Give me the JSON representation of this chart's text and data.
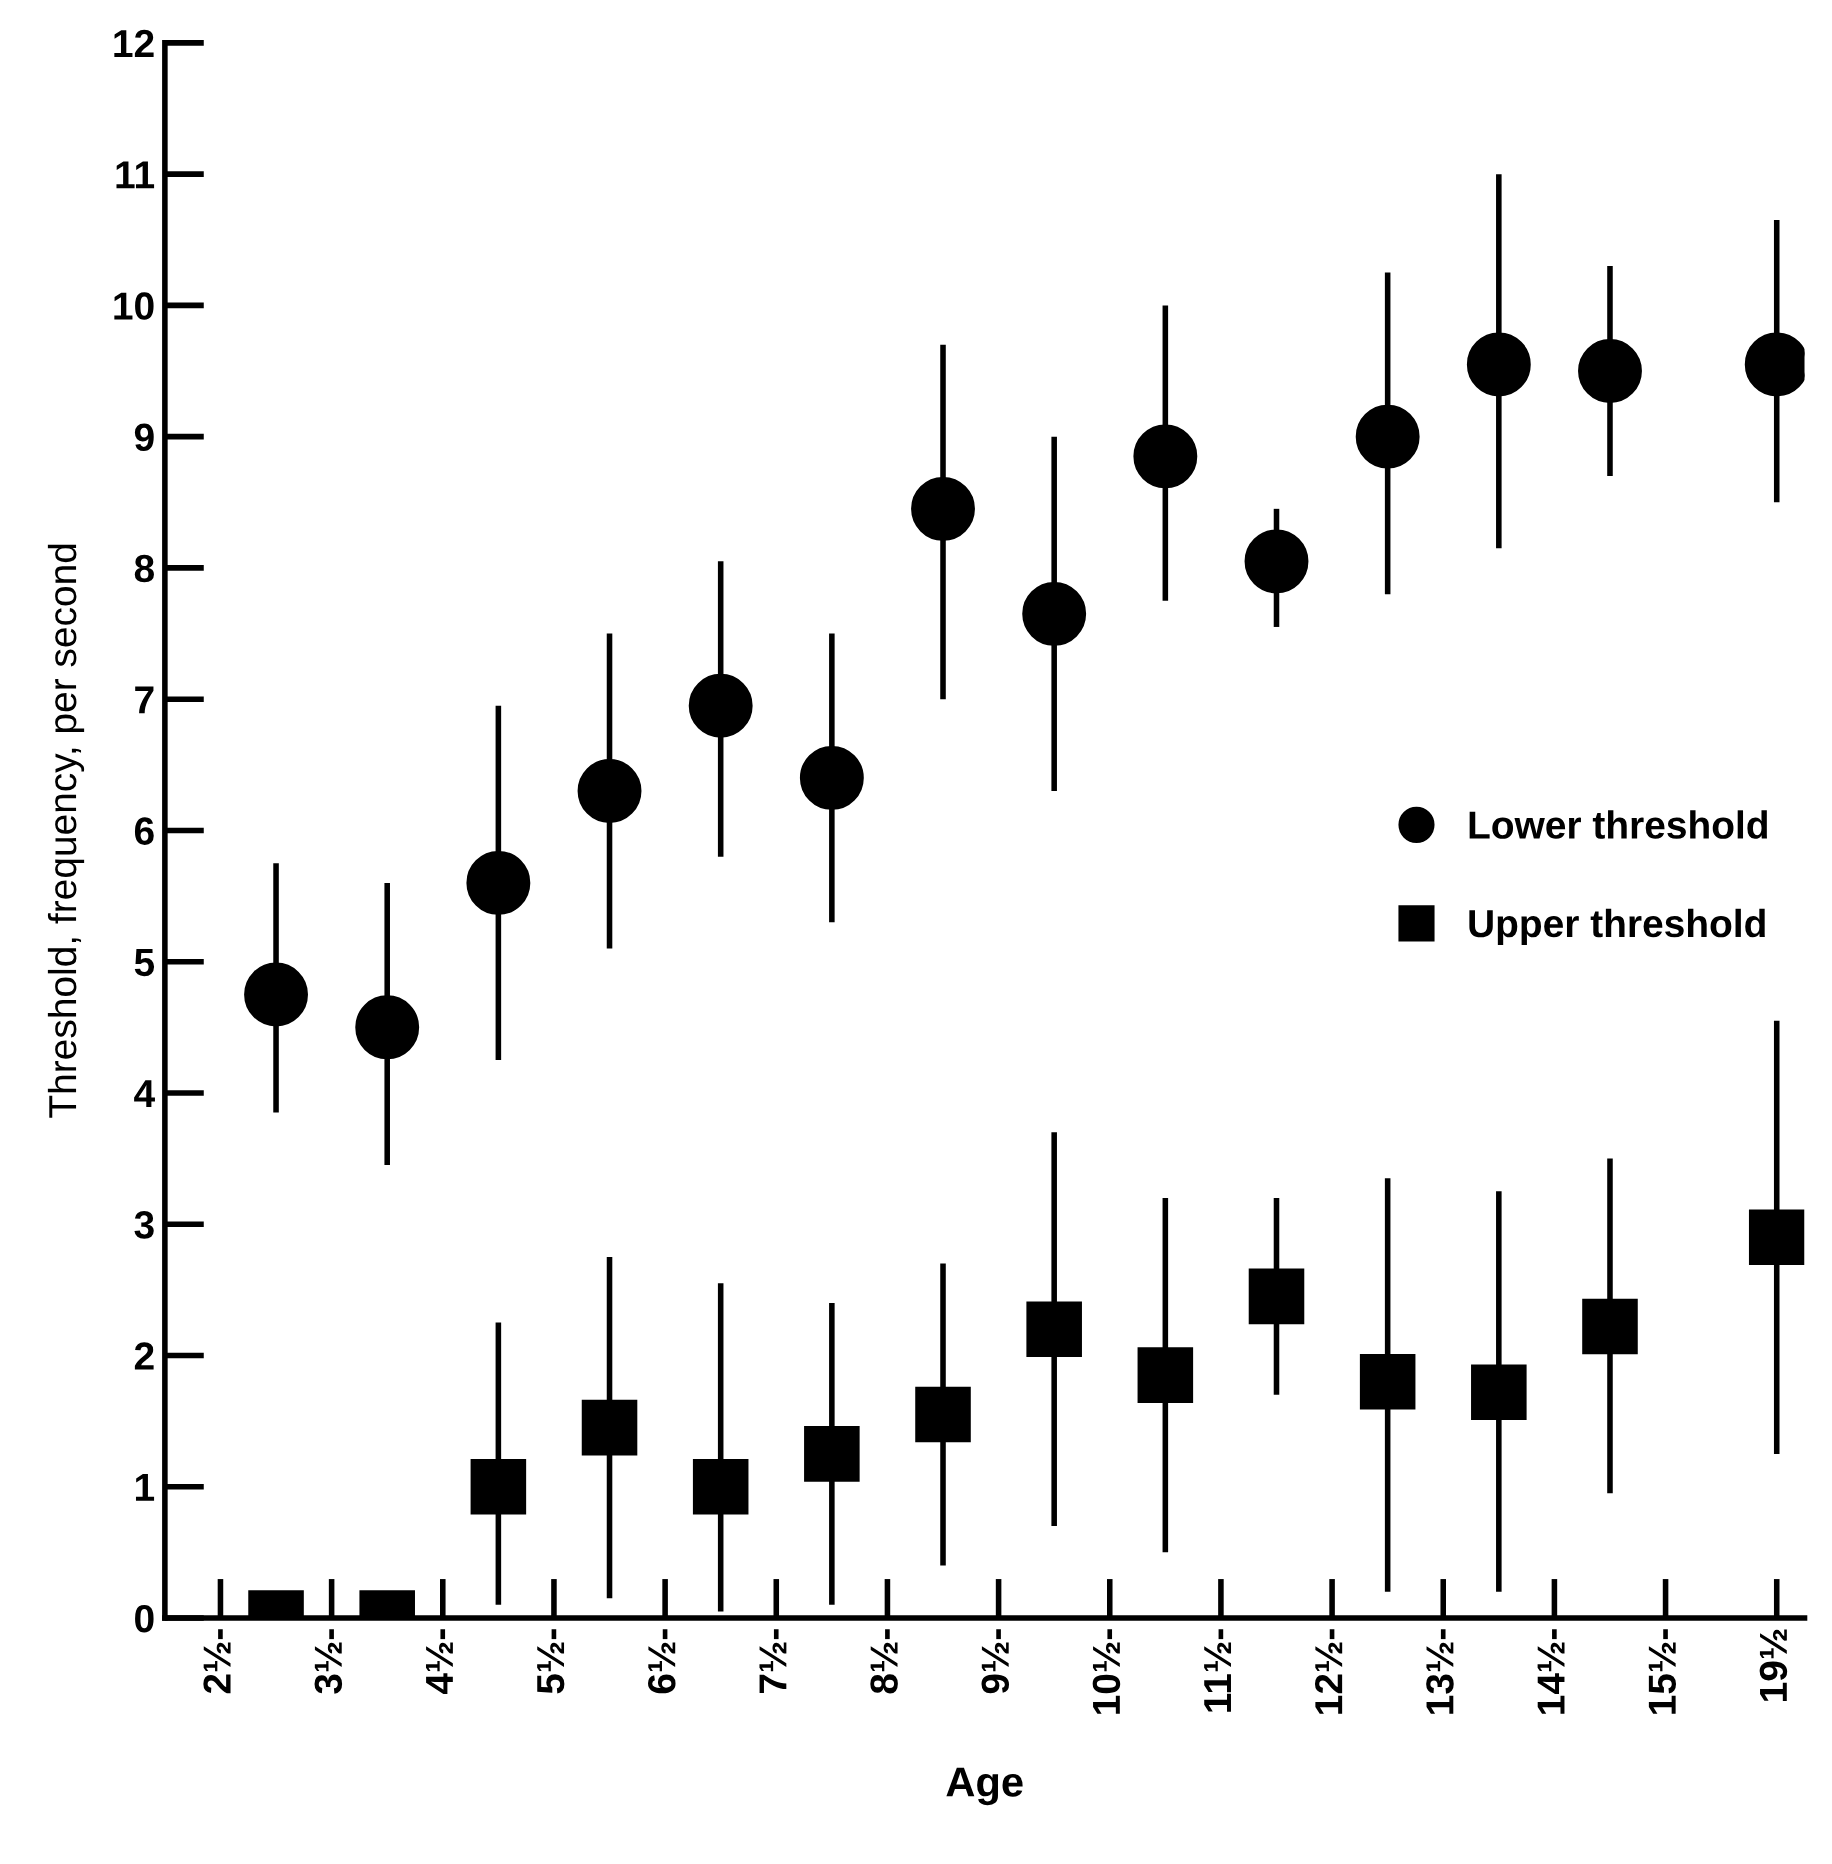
{
  "chart_data": {
    "type": "scatter",
    "xlabel": "Age",
    "ylabel": "Threshold, frequency, per second",
    "categories": [
      "2½-",
      null,
      "3½-",
      null,
      "4½-",
      null,
      "5½-",
      null,
      "6½-",
      null,
      "7½-",
      null,
      "8½-",
      null,
      "9½-",
      null,
      "10½-",
      null,
      "11½-",
      null,
      "12½-",
      null,
      "13½-",
      null,
      "14½-",
      null,
      "15½-",
      null,
      "19½"
    ],
    "ylim": [
      0,
      12
    ],
    "yticks": [
      0,
      1,
      2,
      3,
      4,
      5,
      6,
      7,
      8,
      9,
      10,
      11,
      12
    ],
    "grid": false,
    "legend": "right",
    "line_style": "none",
    "series": [
      {
        "name": "Lower threshold",
        "color": "#000000",
        "marker": "circle",
        "values": [
          null,
          4.75,
          null,
          4.5,
          null,
          5.6,
          null,
          6.3,
          null,
          6.95,
          null,
          6.4,
          null,
          8.45,
          null,
          7.65,
          null,
          8.85,
          null,
          8.05,
          null,
          9.0,
          null,
          9.55,
          null,
          9.5,
          null,
          null,
          9.55
        ],
        "errors": [
          null,
          [
            3.85,
            5.75
          ],
          null,
          [
            3.45,
            5.6
          ],
          null,
          [
            4.25,
            6.95
          ],
          null,
          [
            5.1,
            7.5
          ],
          null,
          [
            5.8,
            8.05
          ],
          null,
          [
            5.3,
            7.5
          ],
          null,
          [
            7.0,
            9.7
          ],
          null,
          [
            6.3,
            9.0
          ],
          null,
          [
            7.75,
            10.0
          ],
          null,
          [
            7.55,
            8.45
          ],
          null,
          [
            7.8,
            10.25
          ],
          null,
          [
            8.15,
            11.0
          ],
          null,
          [
            8.7,
            10.3
          ],
          null,
          null,
          [
            8.5,
            10.65
          ]
        ]
      },
      {
        "name": "Upper threshold",
        "color": "#000000",
        "marker": "square",
        "values": [
          null,
          0,
          null,
          0,
          null,
          1.0,
          null,
          1.45,
          null,
          1.0,
          null,
          1.25,
          null,
          1.55,
          null,
          2.2,
          null,
          1.85,
          null,
          2.45,
          null,
          1.8,
          null,
          1.72,
          null,
          2.22,
          null,
          null,
          2.9
        ],
        "errors": [
          null,
          null,
          null,
          null,
          null,
          [
            0.1,
            2.25
          ],
          null,
          [
            0.15,
            2.75
          ],
          null,
          [
            0.05,
            2.55
          ],
          null,
          [
            0.1,
            2.4
          ],
          null,
          [
            0.4,
            2.7
          ],
          null,
          [
            0.7,
            3.7
          ],
          null,
          [
            0.5,
            3.2
          ],
          null,
          [
            1.7,
            3.2
          ],
          null,
          [
            0.2,
            3.35
          ],
          null,
          [
            0.2,
            3.25
          ],
          null,
          [
            0.95,
            3.5
          ],
          null,
          null,
          [
            1.25,
            4.55
          ]
        ]
      }
    ]
  }
}
